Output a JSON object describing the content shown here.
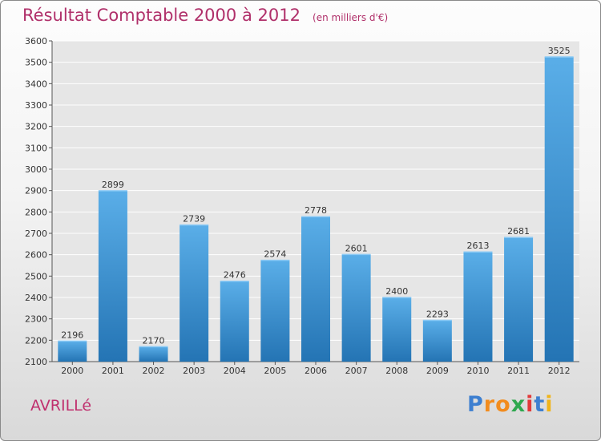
{
  "chart_data": {
    "type": "bar",
    "title": "Résultat Comptable 2000 à 2012",
    "subtitle": "(en milliers d'€)",
    "categories": [
      "2000",
      "2001",
      "2002",
      "2003",
      "2004",
      "2005",
      "2006",
      "2007",
      "2008",
      "2009",
      "2010",
      "2011",
      "2012"
    ],
    "values": [
      2196,
      2899,
      2170,
      2739,
      2476,
      2574,
      2778,
      2601,
      2400,
      2293,
      2613,
      2681,
      3525
    ],
    "ylim": [
      2100,
      3600
    ],
    "yticks": [
      2100,
      2200,
      2300,
      2400,
      2500,
      2600,
      2700,
      2800,
      2900,
      3000,
      3100,
      3200,
      3300,
      3400,
      3500,
      3600
    ],
    "xlabel": "",
    "ylabel": "",
    "grid": true,
    "bar_color_top": "#5aaee8",
    "bar_color_bottom": "#2474b4"
  },
  "location": "AVRILLé",
  "brand": {
    "letters": [
      "P",
      "r",
      "o",
      "x",
      "i",
      "t",
      "i"
    ],
    "colors": [
      "#3d7fd0",
      "#f28c1e",
      "#f28c1e",
      "#2fa84f",
      "#e23a3a",
      "#3d7fd0",
      "#f0b419"
    ]
  },
  "colors": {
    "title": "#b0306a",
    "city": "#c0306e"
  }
}
